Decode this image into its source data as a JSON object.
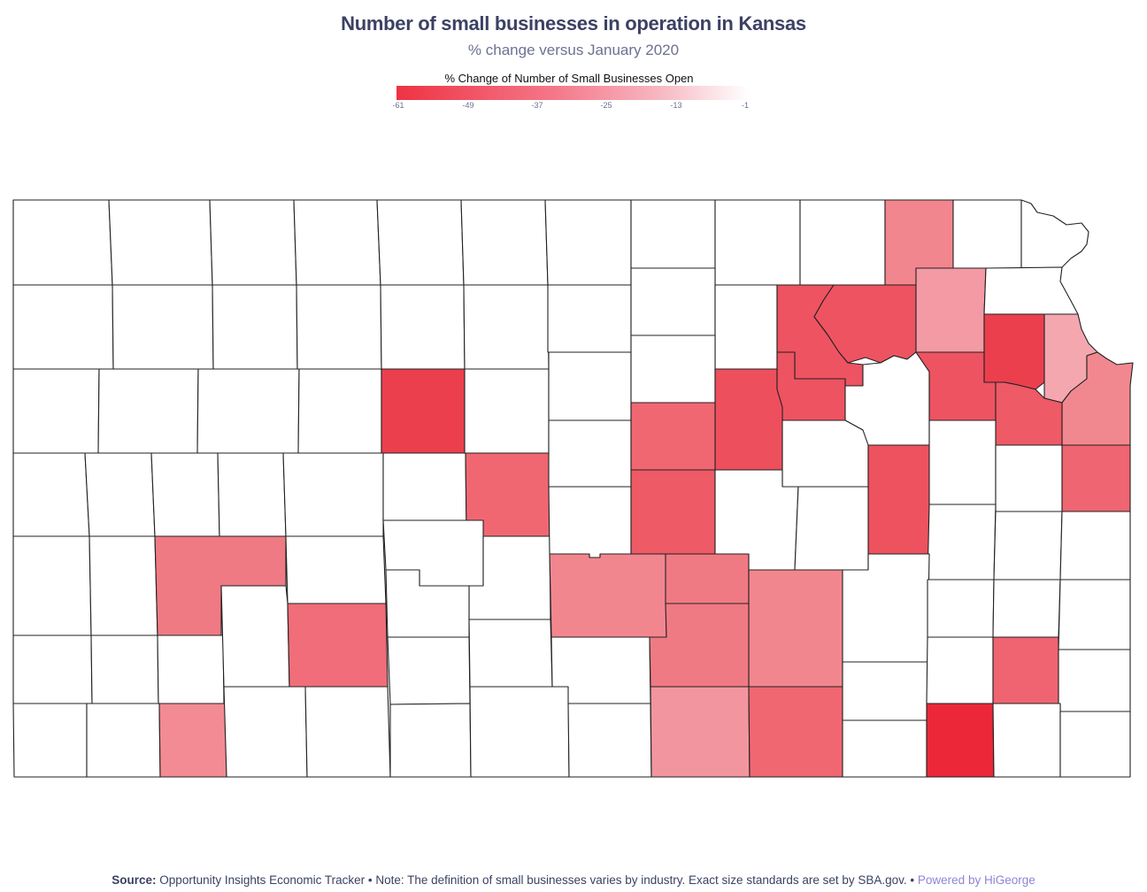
{
  "title": "Number of small businesses in operation in Kansas",
  "subtitle": "% change versus January 2020",
  "legend": {
    "title": "% Change of Number of Small Businesses Open",
    "ticks": [
      "-61",
      "-49",
      "-37",
      "-25",
      "-13",
      "-1"
    ],
    "colors": {
      "low": "#ee3343",
      "mid": "#f4788a",
      "high": "#ffffff"
    }
  },
  "map_data": {
    "type": "choropleth",
    "region": "Kansas counties",
    "value_range": [
      -61,
      -1
    ],
    "no_data_color": "#ffffff",
    "border_color": "#222222"
  },
  "footer": {
    "source_label": "Source:",
    "source_text": "Opportunity Insights Economic Tracker • Note: The definition of small businesses varies by industry. Exact size standards are set by SBA.gov. •",
    "powered": "Powered by HiGeorge"
  }
}
